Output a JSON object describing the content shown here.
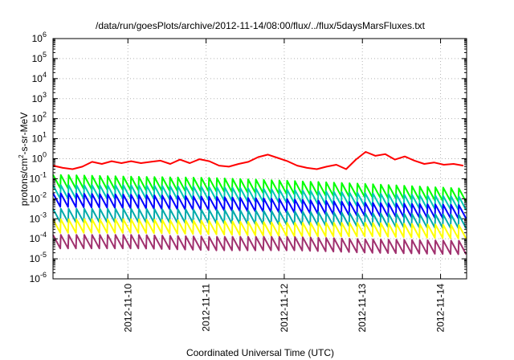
{
  "chart_data": {
    "type": "line",
    "title": "/data/run/goesPlots/archive/2012-11-14/08:00/flux/../flux/5daysMarsFluxes.txt",
    "xlabel": "Coordinated Universal Time (UTC)",
    "ylabel": {
      "base": "protons/cm",
      "sup": "2",
      "rest": "-s-sr-MeV"
    },
    "yscale": "log",
    "ylim": [
      1e-06,
      1000000.0
    ],
    "xlim": [
      "2012-11-09T01:00",
      "2012-11-14T08:00"
    ],
    "grid": true,
    "legend": "none",
    "y_ticks": [
      {
        "exp": "-6",
        "value": 1e-06
      },
      {
        "exp": "-5",
        "value": 1e-05
      },
      {
        "exp": "-4",
        "value": 0.0001
      },
      {
        "exp": "-3",
        "value": 0.001
      },
      {
        "exp": "-2",
        "value": 0.01
      },
      {
        "exp": "-1",
        "value": 0.1
      },
      {
        "exp": "0",
        "value": 1
      },
      {
        "exp": "1",
        "value": 10
      },
      {
        "exp": "2",
        "value": 100
      },
      {
        "exp": "3",
        "value": 1000
      },
      {
        "exp": "4",
        "value": 10000
      },
      {
        "exp": "5",
        "value": 100000
      },
      {
        "exp": "6",
        "value": 1000000
      }
    ],
    "x_ticks": [
      "2012-11-10",
      "2012-11-11",
      "2012-11-12",
      "2012-11-13",
      "2012-11-14"
    ],
    "series": [
      {
        "color": "#ff0000",
        "x": [
          "2012-11-09T01:00",
          "2012-11-09T04:00",
          "2012-11-09T07:00",
          "2012-11-09T10:00",
          "2012-11-09T13:00",
          "2012-11-09T16:00",
          "2012-11-09T19:00",
          "2012-11-09T22:00",
          "2012-11-10T01:00",
          "2012-11-10T04:00",
          "2012-11-10T07:00",
          "2012-11-10T10:00",
          "2012-11-10T13:00",
          "2012-11-10T16:00",
          "2012-11-10T19:00",
          "2012-11-10T22:00",
          "2012-11-11T01:00",
          "2012-11-11T04:00",
          "2012-11-11T07:00",
          "2012-11-11T10:00",
          "2012-11-11T13:00",
          "2012-11-11T16:00",
          "2012-11-11T19:00",
          "2012-11-11T22:00",
          "2012-11-12T01:00",
          "2012-11-12T04:00",
          "2012-11-12T07:00",
          "2012-11-12T10:00",
          "2012-11-12T13:00",
          "2012-11-12T16:00",
          "2012-11-12T19:00",
          "2012-11-12T22:00",
          "2012-11-13T01:00",
          "2012-11-13T04:00",
          "2012-11-13T07:00",
          "2012-11-13T10:00",
          "2012-11-13T13:00",
          "2012-11-13T16:00",
          "2012-11-13T19:00",
          "2012-11-13T22:00",
          "2012-11-14T01:00",
          "2012-11-14T04:00",
          "2012-11-14T07:00"
        ],
        "values": [
          0.45,
          0.35,
          0.3,
          0.4,
          0.7,
          0.55,
          0.75,
          0.6,
          0.75,
          0.6,
          0.7,
          0.8,
          0.55,
          0.9,
          0.6,
          0.95,
          0.75,
          0.45,
          0.4,
          0.55,
          0.7,
          1.2,
          1.6,
          1.1,
          0.75,
          0.45,
          0.35,
          0.3,
          0.4,
          0.5,
          0.3,
          0.9,
          2.2,
          1.4,
          1.7,
          0.9,
          1.3,
          0.8,
          0.55,
          0.65,
          0.5,
          0.55,
          0.45
        ]
      },
      {
        "color": "#00ff00",
        "x": [
          "2012-11-09T01:00",
          "2012-11-10T01:00",
          "2012-11-11T01:00",
          "2012-11-12T01:00",
          "2012-11-13T01:00",
          "2012-11-14T08:00"
        ],
        "values": [
          0.1,
          0.08,
          0.07,
          0.05,
          0.035,
          0.02
        ]
      },
      {
        "color": "#00c8b4",
        "x": [
          "2012-11-09T01:00",
          "2012-11-10T01:00",
          "2012-11-11T01:00",
          "2012-11-12T01:00",
          "2012-11-13T01:00",
          "2012-11-14T08:00"
        ],
        "values": [
          0.03,
          0.03,
          0.025,
          0.018,
          0.012,
          0.008
        ]
      },
      {
        "color": "#0000ff",
        "x": [
          "2012-11-09T01:00",
          "2012-11-10T01:00",
          "2012-11-11T01:00",
          "2012-11-12T01:00",
          "2012-11-13T01:00",
          "2012-11-14T08:00"
        ],
        "values": [
          0.012,
          0.01,
          0.008,
          0.006,
          0.004,
          0.003
        ]
      },
      {
        "color": "#00aaaa",
        "x": [
          "2012-11-09T01:00",
          "2012-11-10T01:00",
          "2012-11-11T01:00",
          "2012-11-12T01:00",
          "2012-11-13T01:00",
          "2012-11-14T08:00"
        ],
        "values": [
          0.002,
          0.002,
          0.0018,
          0.0015,
          0.0012,
          0.001
        ]
      },
      {
        "color": "#ffff00",
        "x": [
          "2012-11-09T01:00",
          "2012-11-10T01:00",
          "2012-11-11T01:00",
          "2012-11-12T01:00",
          "2012-11-13T01:00",
          "2012-11-14T08:00"
        ],
        "values": [
          0.0006,
          0.0006,
          0.0005,
          0.0004,
          0.0004,
          0.0003
        ]
      },
      {
        "color": "#a0306e",
        "x": [
          "2012-11-09T01:00",
          "2012-11-10T01:00",
          "2012-11-11T01:00",
          "2012-11-12T01:00",
          "2012-11-13T01:00",
          "2012-11-14T08:00"
        ],
        "values": [
          0.0001,
          0.0001,
          8e-05,
          8e-05,
          6e-05,
          5e-05
        ]
      }
    ]
  }
}
